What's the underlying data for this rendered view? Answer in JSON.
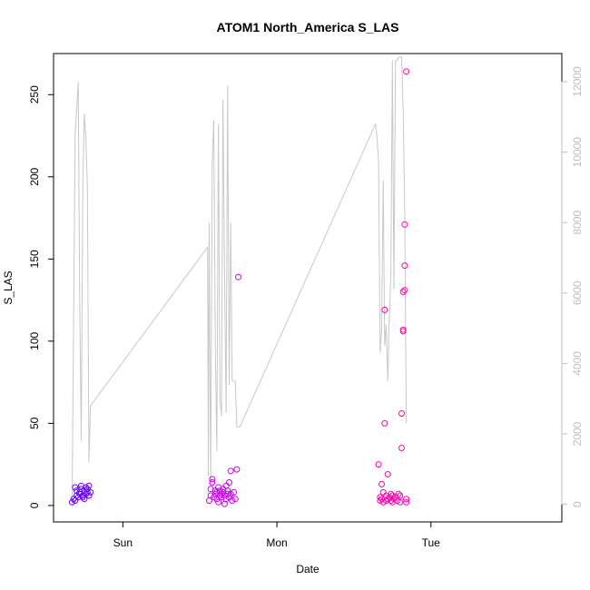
{
  "chart_data": {
    "type": "scatter",
    "title": "ATOM1 North_America S_LAS",
    "xlabel": "Date",
    "ylabel": "S_LAS",
    "xlim": [
      -0.45,
      2.85
    ],
    "ylim": [
      -10,
      275
    ],
    "y2lim": [
      -500,
      12800
    ],
    "x_ticks": [
      {
        "value": 0,
        "label": "Sun"
      },
      {
        "value": 1,
        "label": "Mon"
      },
      {
        "value": 2,
        "label": "Tue"
      }
    ],
    "y_ticks": [
      0,
      50,
      100,
      150,
      200,
      250
    ],
    "y2_ticks": [
      0,
      2000,
      4000,
      6000,
      8000,
      10000,
      12000
    ],
    "line_color": "#c8c8c8",
    "right_axis_color": "#bebebe",
    "series": [
      {
        "kind": "points",
        "color": "#6a00ff",
        "x": [
          -0.33,
          -0.32,
          -0.31,
          -0.31,
          -0.3,
          -0.3,
          -0.29,
          -0.28,
          -0.28,
          -0.27,
          -0.27,
          -0.26,
          -0.26,
          -0.25,
          -0.25,
          -0.24,
          -0.24,
          -0.23,
          -0.23,
          -0.22,
          -0.22,
          -0.21
        ],
        "y": [
          2,
          4,
          11,
          3,
          6,
          9,
          5,
          7,
          8,
          10,
          12,
          6,
          5,
          4,
          9,
          11,
          7,
          8,
          10,
          6,
          12,
          8
        ]
      },
      {
        "kind": "points",
        "color": "#cc00ee",
        "x": [
          0.56,
          0.57,
          0.57,
          0.58,
          0.58,
          0.59,
          0.6,
          0.6,
          0.61,
          0.61,
          0.62,
          0.62,
          0.63,
          0.63,
          0.64,
          0.64,
          0.65,
          0.65,
          0.66,
          0.66,
          0.67,
          0.67,
          0.68,
          0.68,
          0.69,
          0.69,
          0.7,
          0.7,
          0.71,
          0.72,
          0.73,
          0.74,
          0.75
        ],
        "y": [
          3,
          6,
          10,
          14,
          16,
          5,
          7,
          9,
          4,
          8,
          11,
          2,
          6,
          9,
          7,
          5,
          10,
          8,
          1,
          6,
          4,
          12,
          7,
          9,
          14,
          5,
          21,
          7,
          3,
          8,
          4,
          22,
          139
        ]
      },
      {
        "kind": "points",
        "color": "#ff00aa",
        "x": [
          1.66,
          1.67,
          1.67,
          1.68,
          1.68,
          1.69,
          1.69,
          1.7,
          1.7,
          1.71,
          1.71,
          1.72,
          1.72,
          1.73,
          1.74,
          1.74,
          1.75,
          1.75,
          1.76,
          1.77,
          1.78,
          1.79,
          1.8,
          1.8,
          1.81,
          1.81,
          1.82,
          1.82,
          1.82,
          1.83,
          1.83,
          1.83,
          1.84,
          1.84,
          1.84
        ],
        "y": [
          25,
          5,
          3,
          13,
          4,
          2,
          8,
          50,
          119,
          3,
          6,
          19,
          4,
          5,
          3,
          7,
          2,
          6,
          4,
          5,
          3,
          7,
          2,
          6,
          35,
          56,
          106,
          107,
          130,
          131,
          146,
          171,
          264,
          4,
          2
        ]
      },
      {
        "kind": "line",
        "axis": "right",
        "x": [
          -0.33,
          -0.31,
          -0.29,
          -0.28,
          -0.27,
          -0.26,
          -0.25,
          -0.24,
          -0.23,
          -0.22,
          -0.21,
          0.55,
          0.555,
          0.56,
          0.57,
          0.58,
          0.59,
          0.6,
          0.61,
          0.62,
          0.63,
          0.64,
          0.65,
          0.66,
          0.67,
          0.68,
          0.69,
          0.7,
          0.71,
          0.72,
          0.73,
          0.74,
          0.75,
          0.76,
          1.64,
          1.65,
          1.66,
          1.67,
          1.68,
          1.69,
          1.7,
          1.71,
          1.72,
          1.73,
          1.74,
          1.75,
          1.76,
          1.77,
          1.78,
          1.79,
          1.8,
          1.81,
          1.82,
          1.83,
          1.84
        ],
        "y": [
          0,
          10500,
          12000,
          5800,
          1800,
          9000,
          11100,
          10400,
          9000,
          1200,
          2800,
          7300,
          800,
          8000,
          500,
          9700,
          10900,
          4500,
          1500,
          10800,
          3000,
          2500,
          11500,
          6500,
          2600,
          11900,
          3400,
          8000,
          3500,
          3500,
          3500,
          2200,
          2200,
          2200,
          10800,
          10400,
          9700,
          4300,
          5000,
          9200,
          4500,
          5100,
          3500,
          5300,
          6500,
          12600,
          6100,
          12600,
          12600,
          12700,
          12700,
          12700,
          11200,
          8300,
          2300
        ]
      }
    ]
  }
}
